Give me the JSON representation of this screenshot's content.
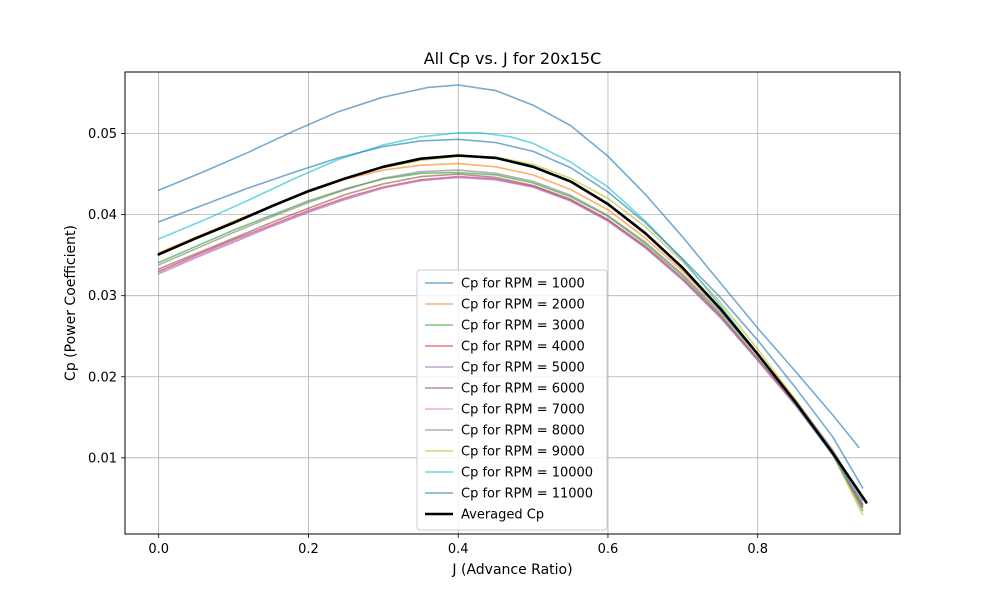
{
  "chart_data": {
    "type": "line",
    "title": "All Cp vs. J for 20x15C",
    "xlabel": "J (Advance Ratio)",
    "ylabel": "Cp (Power Coefficient)",
    "xlim": [
      -0.045,
      0.99
    ],
    "ylim": [
      0.0006,
      0.0576
    ],
    "xticks": [
      0.0,
      0.2,
      0.4,
      0.6,
      0.8
    ],
    "xtick_labels": [
      "0.0",
      "0.2",
      "0.4",
      "0.6",
      "0.8"
    ],
    "yticks": [
      0.01,
      0.02,
      0.03,
      0.04,
      0.05
    ],
    "ytick_labels": [
      "0.01",
      "0.02",
      "0.03",
      "0.04",
      "0.05"
    ],
    "grid": true,
    "legend_position": "lower-center",
    "series": [
      {
        "name": "Cp for RPM = 1000",
        "color": "#1f77b4",
        "x": [
          0.0,
          0.06,
          0.12,
          0.18,
          0.24,
          0.3,
          0.36,
          0.4,
          0.45,
          0.5,
          0.55,
          0.6,
          0.65,
          0.7,
          0.75,
          0.8,
          0.85,
          0.9,
          0.935
        ],
        "y": [
          0.043,
          0.0453,
          0.0477,
          0.0503,
          0.0527,
          0.0545,
          0.0557,
          0.056,
          0.0553,
          0.0535,
          0.051,
          0.0472,
          0.0425,
          0.0372,
          0.0316,
          0.026,
          0.0207,
          0.0153,
          0.0113
        ]
      },
      {
        "name": "Cp for RPM = 2000",
        "color": "#ff7f0e",
        "x": [
          0.0,
          0.05,
          0.1,
          0.15,
          0.2,
          0.25,
          0.3,
          0.35,
          0.4,
          0.45,
          0.5,
          0.55,
          0.6,
          0.65,
          0.7,
          0.75,
          0.8,
          0.85,
          0.9,
          0.94
        ],
        "y": [
          0.0353,
          0.0372,
          0.0391,
          0.041,
          0.0428,
          0.0444,
          0.0455,
          0.0461,
          0.0463,
          0.0459,
          0.0449,
          0.0431,
          0.0406,
          0.0371,
          0.033,
          0.0283,
          0.0228,
          0.0172,
          0.0108,
          0.004
        ]
      },
      {
        "name": "Cp for RPM = 3000",
        "color": "#2ca02c",
        "x": [
          0.0,
          0.05,
          0.1,
          0.15,
          0.2,
          0.25,
          0.3,
          0.35,
          0.4,
          0.45,
          0.5,
          0.55,
          0.6,
          0.65,
          0.7,
          0.75,
          0.8,
          0.85,
          0.9,
          0.94
        ],
        "y": [
          0.0341,
          0.0361,
          0.0381,
          0.0399,
          0.0417,
          0.0432,
          0.0444,
          0.0451,
          0.0452,
          0.0449,
          0.0439,
          0.0422,
          0.0398,
          0.0364,
          0.0324,
          0.0277,
          0.0223,
          0.0167,
          0.0104,
          0.0035
        ]
      },
      {
        "name": "Cp for RPM = 4000",
        "color": "#d62728",
        "x": [
          0.0,
          0.05,
          0.1,
          0.15,
          0.2,
          0.25,
          0.3,
          0.35,
          0.4,
          0.45,
          0.5,
          0.55,
          0.6,
          0.65,
          0.7,
          0.75,
          0.8,
          0.85,
          0.9,
          0.94
        ],
        "y": [
          0.033,
          0.035,
          0.0369,
          0.0387,
          0.0405,
          0.0421,
          0.0434,
          0.0443,
          0.0447,
          0.0444,
          0.0435,
          0.0418,
          0.0393,
          0.036,
          0.032,
          0.0274,
          0.0221,
          0.0166,
          0.0105,
          0.0039
        ]
      },
      {
        "name": "Cp for RPM = 5000",
        "color": "#9467bd",
        "x": [
          0.0,
          0.05,
          0.1,
          0.15,
          0.2,
          0.25,
          0.3,
          0.35,
          0.4,
          0.45,
          0.5,
          0.55,
          0.6,
          0.65,
          0.7,
          0.75,
          0.8,
          0.85,
          0.9,
          0.94
        ],
        "y": [
          0.0327,
          0.0347,
          0.0366,
          0.0385,
          0.0403,
          0.0419,
          0.0433,
          0.0442,
          0.0446,
          0.0443,
          0.0434,
          0.0417,
          0.0392,
          0.0359,
          0.0319,
          0.0273,
          0.022,
          0.0165,
          0.0104,
          0.0042
        ]
      },
      {
        "name": "Cp for RPM = 6000",
        "color": "#8c564b",
        "x": [
          0.0,
          0.05,
          0.1,
          0.15,
          0.2,
          0.25,
          0.3,
          0.35,
          0.4,
          0.45,
          0.5,
          0.55,
          0.6,
          0.65,
          0.7,
          0.75,
          0.8,
          0.85,
          0.9,
          0.94
        ],
        "y": [
          0.0333,
          0.0352,
          0.0371,
          0.039,
          0.0408,
          0.0425,
          0.0438,
          0.0447,
          0.045,
          0.0446,
          0.0436,
          0.0419,
          0.0394,
          0.0361,
          0.0321,
          0.0275,
          0.0222,
          0.0167,
          0.0106,
          0.0043
        ]
      },
      {
        "name": "Cp for RPM = 7000",
        "color": "#e377c2",
        "x": [
          0.0,
          0.05,
          0.1,
          0.15,
          0.2,
          0.25,
          0.3,
          0.35,
          0.4,
          0.45,
          0.5,
          0.55,
          0.6,
          0.65,
          0.7,
          0.75,
          0.8,
          0.85,
          0.9,
          0.94
        ],
        "y": [
          0.0329,
          0.0349,
          0.0368,
          0.0387,
          0.0404,
          0.042,
          0.0433,
          0.0442,
          0.0447,
          0.0444,
          0.0434,
          0.0417,
          0.0392,
          0.0359,
          0.032,
          0.0274,
          0.0221,
          0.0166,
          0.0105,
          0.0044
        ]
      },
      {
        "name": "Cp for RPM = 8000",
        "color": "#7f7f7f",
        "x": [
          0.0,
          0.05,
          0.1,
          0.15,
          0.2,
          0.25,
          0.3,
          0.35,
          0.4,
          0.45,
          0.5,
          0.55,
          0.6,
          0.65,
          0.7,
          0.75,
          0.8,
          0.85,
          0.9,
          0.94
        ],
        "y": [
          0.0338,
          0.0358,
          0.0378,
          0.0397,
          0.0415,
          0.0431,
          0.0445,
          0.0453,
          0.0455,
          0.0451,
          0.0441,
          0.0424,
          0.0399,
          0.0366,
          0.0326,
          0.028,
          0.0227,
          0.0172,
          0.011,
          0.0048
        ]
      },
      {
        "name": "Cp for RPM = 9000",
        "color": "#bcbd22",
        "x": [
          0.0,
          0.05,
          0.1,
          0.15,
          0.2,
          0.25,
          0.3,
          0.35,
          0.4,
          0.45,
          0.5,
          0.55,
          0.6,
          0.65,
          0.7,
          0.75,
          0.8,
          0.85,
          0.9,
          0.94
        ],
        "y": [
          0.0352,
          0.0372,
          0.0392,
          0.041,
          0.0428,
          0.0445,
          0.0458,
          0.0467,
          0.0472,
          0.0471,
          0.0462,
          0.0445,
          0.042,
          0.0385,
          0.0342,
          0.0292,
          0.0234,
          0.0172,
          0.0105,
          0.003
        ]
      },
      {
        "name": "Cp for RPM = 10000",
        "color": "#17becf",
        "x": [
          0.0,
          0.06,
          0.12,
          0.18,
          0.24,
          0.3,
          0.35,
          0.4,
          0.43,
          0.47,
          0.5,
          0.55,
          0.6,
          0.65,
          0.7,
          0.75,
          0.8,
          0.85,
          0.9,
          0.94
        ],
        "y": [
          0.037,
          0.0393,
          0.0418,
          0.0444,
          0.0468,
          0.0486,
          0.0496,
          0.0501,
          0.0501,
          0.0496,
          0.0488,
          0.0465,
          0.0434,
          0.0392,
          0.0344,
          0.0288,
          0.0228,
          0.0167,
          0.0104,
          0.0043
        ]
      },
      {
        "name": "Cp for RPM = 11000",
        "color": "#1f77b4",
        "x": [
          0.0,
          0.06,
          0.12,
          0.18,
          0.24,
          0.3,
          0.35,
          0.4,
          0.45,
          0.5,
          0.55,
          0.6,
          0.65,
          0.7,
          0.75,
          0.8,
          0.85,
          0.9,
          0.94
        ],
        "y": [
          0.0391,
          0.0412,
          0.0433,
          0.0452,
          0.047,
          0.0484,
          0.0491,
          0.0493,
          0.0489,
          0.0478,
          0.0458,
          0.0428,
          0.039,
          0.0345,
          0.0298,
          0.0245,
          0.0187,
          0.0126,
          0.0063
        ]
      },
      {
        "name": "Averaged Cp",
        "color": "#000000",
        "bold": true,
        "x": [
          0.0,
          0.05,
          0.1,
          0.15,
          0.2,
          0.25,
          0.3,
          0.35,
          0.4,
          0.45,
          0.5,
          0.55,
          0.6,
          0.65,
          0.7,
          0.75,
          0.8,
          0.85,
          0.9,
          0.945
        ],
        "y": [
          0.0351,
          0.0371,
          0.039,
          0.041,
          0.0429,
          0.0445,
          0.0459,
          0.0469,
          0.0473,
          0.047,
          0.0459,
          0.0441,
          0.0413,
          0.0377,
          0.0334,
          0.0284,
          0.0228,
          0.0169,
          0.0106,
          0.0045
        ]
      }
    ]
  }
}
